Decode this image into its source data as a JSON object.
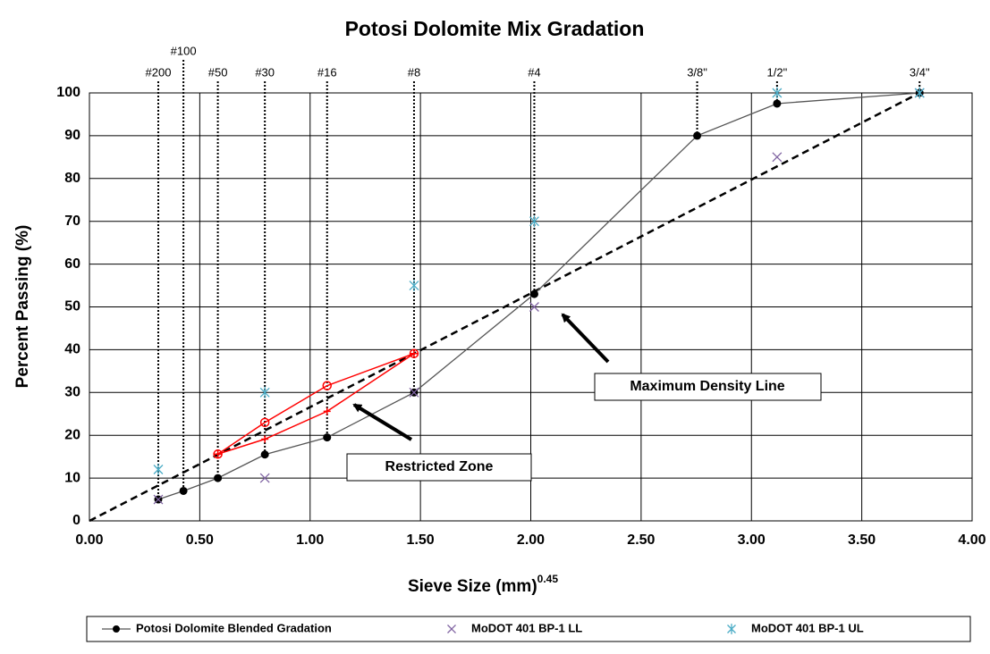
{
  "chart_data": {
    "type": "scatter",
    "title": "Potosi Dolomite Mix Gradation",
    "x_label": "Sieve Size (mm)",
    "x_label_exponent": "0.45",
    "y_label": "Percent Passing (%)",
    "xlim": [
      0,
      4
    ],
    "ylim": [
      0,
      100
    ],
    "xticks": [
      {
        "value": 0,
        "label": "0.00"
      },
      {
        "value": 0.5,
        "label": "0.50"
      },
      {
        "value": 1,
        "label": "1.00"
      },
      {
        "value": 1.5,
        "label": "1.50"
      },
      {
        "value": 2,
        "label": "2.00"
      },
      {
        "value": 2.5,
        "label": "2.50"
      },
      {
        "value": 3,
        "label": "3.00"
      },
      {
        "value": 3.5,
        "label": "3.50"
      },
      {
        "value": 4,
        "label": "4.00"
      }
    ],
    "yticks": [
      0,
      10,
      20,
      30,
      40,
      50,
      60,
      70,
      80,
      90,
      100
    ],
    "grid": true,
    "legend": "bottom",
    "sieve_labels": [
      "#200",
      "#100",
      "#50",
      "#30",
      "#16",
      "#8",
      "#4",
      "3/8\"",
      "1/2\"",
      "3/4\""
    ],
    "series": [
      {
        "name": "Potosi Dolomite Blended Gradation",
        "color": "#000000",
        "line_color": "#555555",
        "marker": "circle",
        "line": true,
        "x": [
          0.312,
          0.426,
          0.582,
          0.795,
          1.077,
          1.471,
          2.016,
          2.754,
          3.116,
          3.762
        ],
        "values": [
          5,
          7,
          10,
          15.5,
          19.5,
          30,
          53,
          90,
          97.5,
          100
        ]
      },
      {
        "name": "MoDOT 401 BP-1 LL",
        "color": "#8064a2",
        "marker": "x",
        "line": false,
        "x": [
          0.312,
          0.795,
          1.471,
          2.016,
          3.116,
          3.762
        ],
        "values": [
          5,
          10,
          30,
          50,
          85,
          100
        ]
      },
      {
        "name": "MoDOT 401 BP-1 UL",
        "color": "#4bacc6",
        "marker": "star",
        "line": false,
        "x": [
          0.312,
          0.795,
          1.471,
          2.016,
          3.116,
          3.762
        ],
        "values": [
          12,
          30,
          55,
          70,
          100,
          100
        ]
      }
    ],
    "restricted_zone": {
      "color": "#ff0000",
      "upper": {
        "x": [
          0.582,
          0.795,
          1.077,
          1.471
        ],
        "values": [
          15.6,
          23,
          31.6,
          39.1
        ]
      },
      "lower": {
        "x": [
          0.582,
          0.795,
          1.077,
          1.471
        ],
        "values": [
          15.6,
          19.1,
          25.6,
          39.1
        ]
      }
    },
    "max_density_line": {
      "x": [
        0,
        3.762
      ],
      "values": [
        0,
        100
      ]
    },
    "annotations": [
      "Maximum Density Line",
      "Restricted Zone"
    ]
  }
}
